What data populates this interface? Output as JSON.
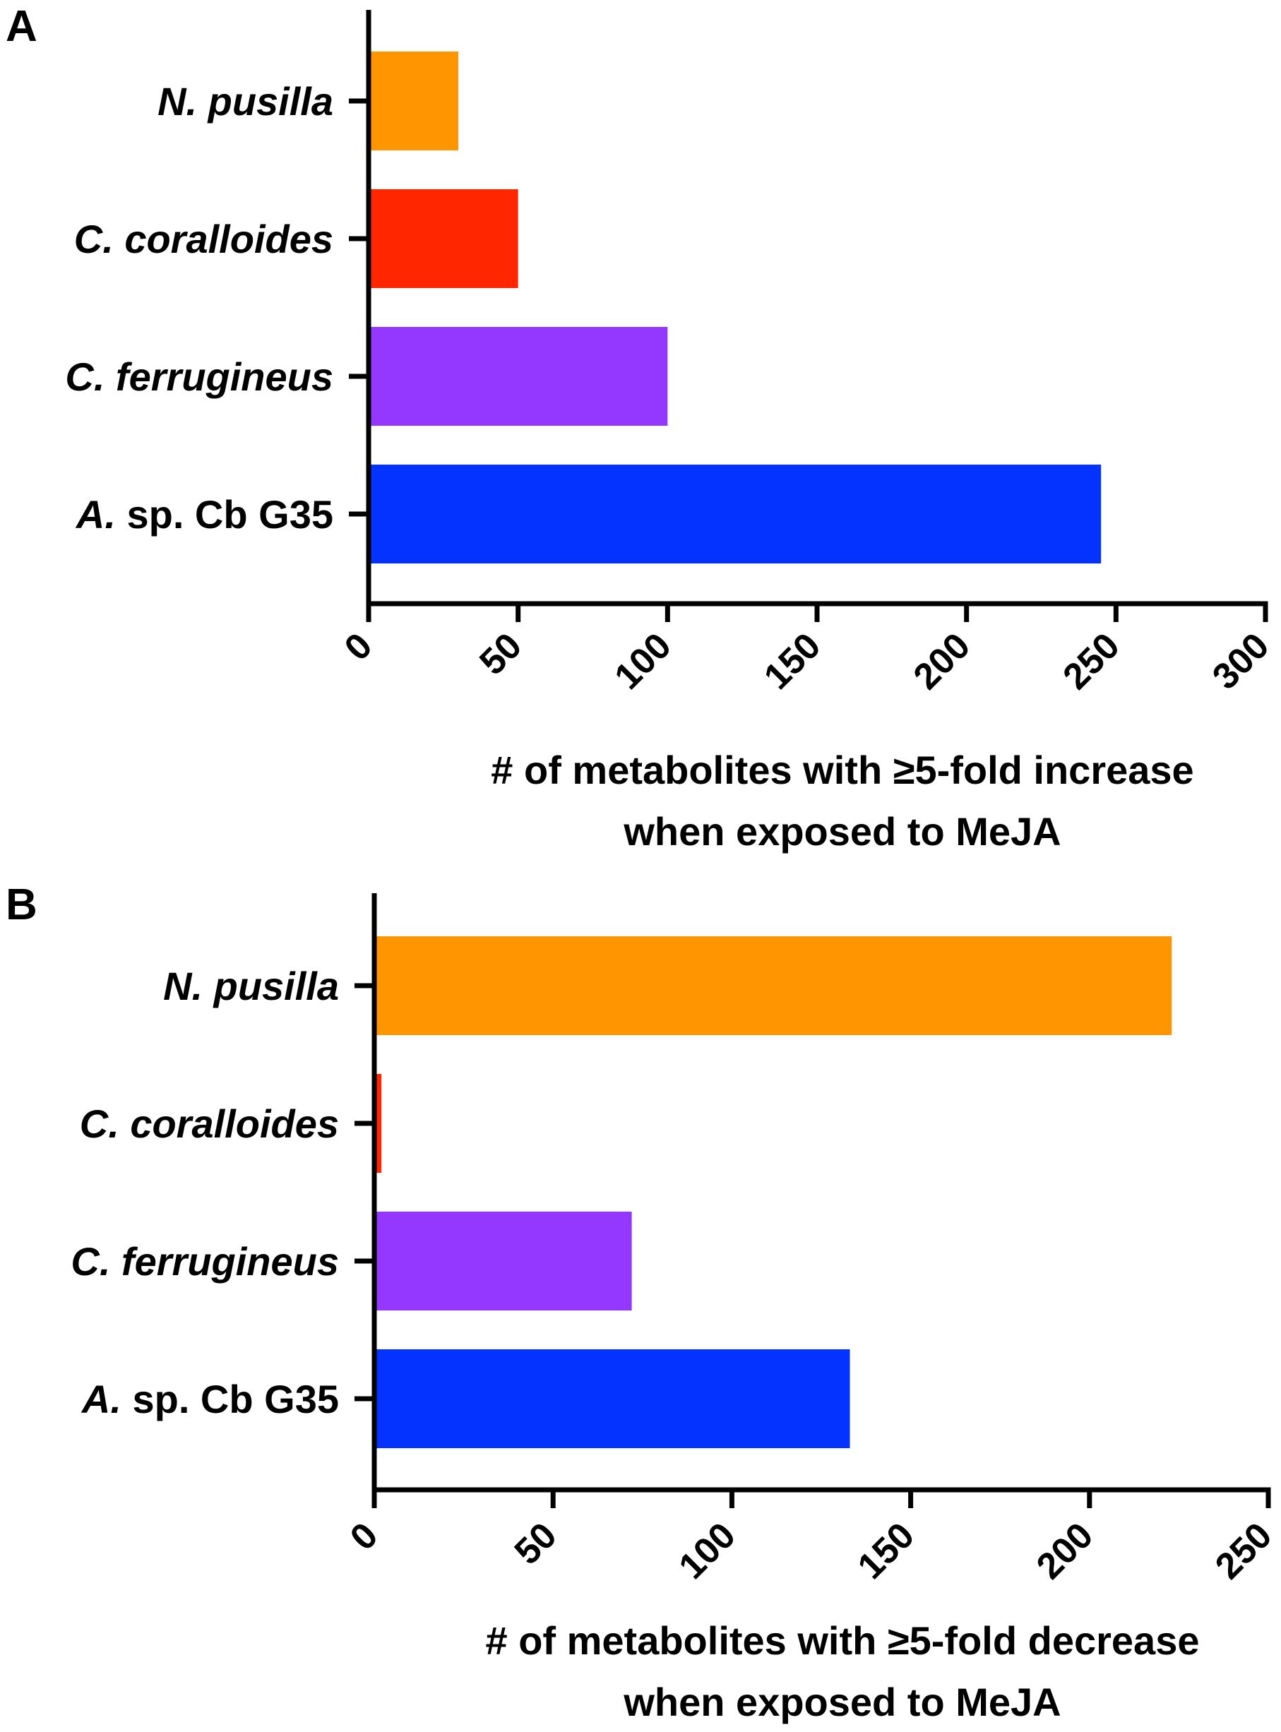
{
  "chart_data": [
    {
      "type": "bar",
      "orientation": "horizontal",
      "panel_label": "A",
      "categories": [
        {
          "italic": "N. pusilla",
          "plain": ""
        },
        {
          "italic": "C. coralloides",
          "plain": ""
        },
        {
          "italic": "C. ferrugineus",
          "plain": ""
        },
        {
          "italic": "A.",
          "plain": " sp. Cb G35"
        }
      ],
      "values": [
        30,
        50,
        100,
        245
      ],
      "colors": [
        "#ff9500",
        "#ff2600",
        "#9437ff",
        "#0433ff"
      ],
      "xlim": [
        0,
        300
      ],
      "xticks": [
        "0",
        "50",
        "100",
        "150",
        "200",
        "250",
        "300"
      ],
      "xlabel": [
        "# of metabolites with ≥5-fold increase",
        "when exposed to MeJA"
      ]
    },
    {
      "type": "bar",
      "orientation": "horizontal",
      "panel_label": "B",
      "categories": [
        {
          "italic": "N. pusilla",
          "plain": ""
        },
        {
          "italic": "C. coralloides",
          "plain": ""
        },
        {
          "italic": "C. ferrugineus",
          "plain": ""
        },
        {
          "italic": "A.",
          "plain": " sp. Cb G35"
        }
      ],
      "values": [
        223,
        2,
        72,
        133
      ],
      "colors": [
        "#ff9500",
        "#ff2600",
        "#9437ff",
        "#0433ff"
      ],
      "xlim": [
        0,
        250
      ],
      "xticks": [
        "0",
        "50",
        "100",
        "150",
        "200",
        "250"
      ],
      "xlabel": [
        "# of metabolites with ≥5-fold decrease",
        "when exposed to MeJA"
      ]
    }
  ]
}
